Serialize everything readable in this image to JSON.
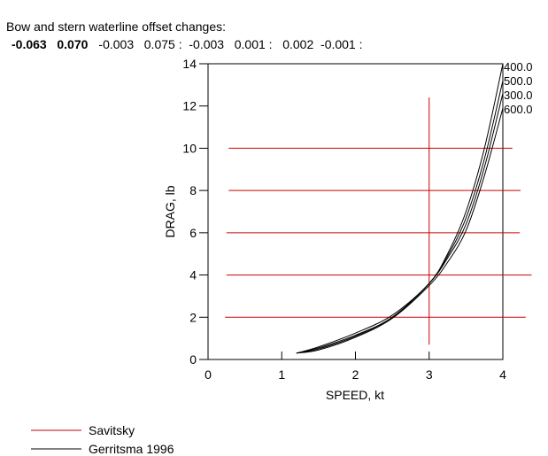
{
  "header": {
    "title": "Bow and stern waterline offset changes:",
    "offsets_a": "-0.063   0.070",
    "offsets_b": "-0.003   0.075 :  -0.003   0.001 :   0.002  -0.001 :"
  },
  "chart_data": {
    "type": "line",
    "xlabel": "SPEED, kt",
    "ylabel": "DRAG, lb",
    "xlim": [
      0,
      4
    ],
    "ylim": [
      0,
      14
    ],
    "xticks": [
      "0",
      "1",
      "2",
      "3",
      "4"
    ],
    "yticks": [
      "0",
      "2",
      "4",
      "6",
      "8",
      "10",
      "12",
      "14"
    ],
    "x": [
      1.2,
      1.5,
      2.0,
      2.5,
      3.0,
      3.25,
      3.5,
      3.75,
      4.0
    ],
    "series": [
      {
        "name": "400.0",
        "values": [
          0.3,
          0.6,
          1.25,
          2.1,
          3.6,
          5.0,
          7.0,
          10.0,
          14.0
        ]
      },
      {
        "name": "500.0",
        "values": [
          0.3,
          0.55,
          1.15,
          2.0,
          3.6,
          4.9,
          6.7,
          9.5,
          13.2
        ]
      },
      {
        "name": "300.0",
        "values": [
          0.3,
          0.5,
          1.1,
          2.0,
          3.6,
          4.8,
          6.4,
          9.1,
          12.6
        ]
      },
      {
        "name": "600.0",
        "values": [
          0.3,
          0.45,
          1.05,
          1.95,
          3.5,
          4.6,
          6.1,
          8.7,
          11.9
        ]
      }
    ],
    "reference_lines": {
      "horizontal": [
        {
          "y": 10,
          "x_from": 0.28,
          "x_to": 4.13
        },
        {
          "y": 8,
          "x_from": 0.28,
          "x_to": 4.24
        },
        {
          "y": 6,
          "x_from": 0.25,
          "x_to": 4.23
        },
        {
          "y": 4,
          "x_from": 0.25,
          "x_to": 4.39
        },
        {
          "y": 2,
          "x_from": 0.23,
          "x_to": 4.31
        }
      ],
      "vertical": {
        "x": 3.0,
        "y_from": 0.7,
        "y_to": 12.4
      }
    },
    "legend": [
      {
        "label": "Savitsky",
        "color": "#cc0000"
      },
      {
        "label": "Gerritsma 1996",
        "color": "#000000"
      }
    ],
    "legend_placement": "bottom-left"
  }
}
